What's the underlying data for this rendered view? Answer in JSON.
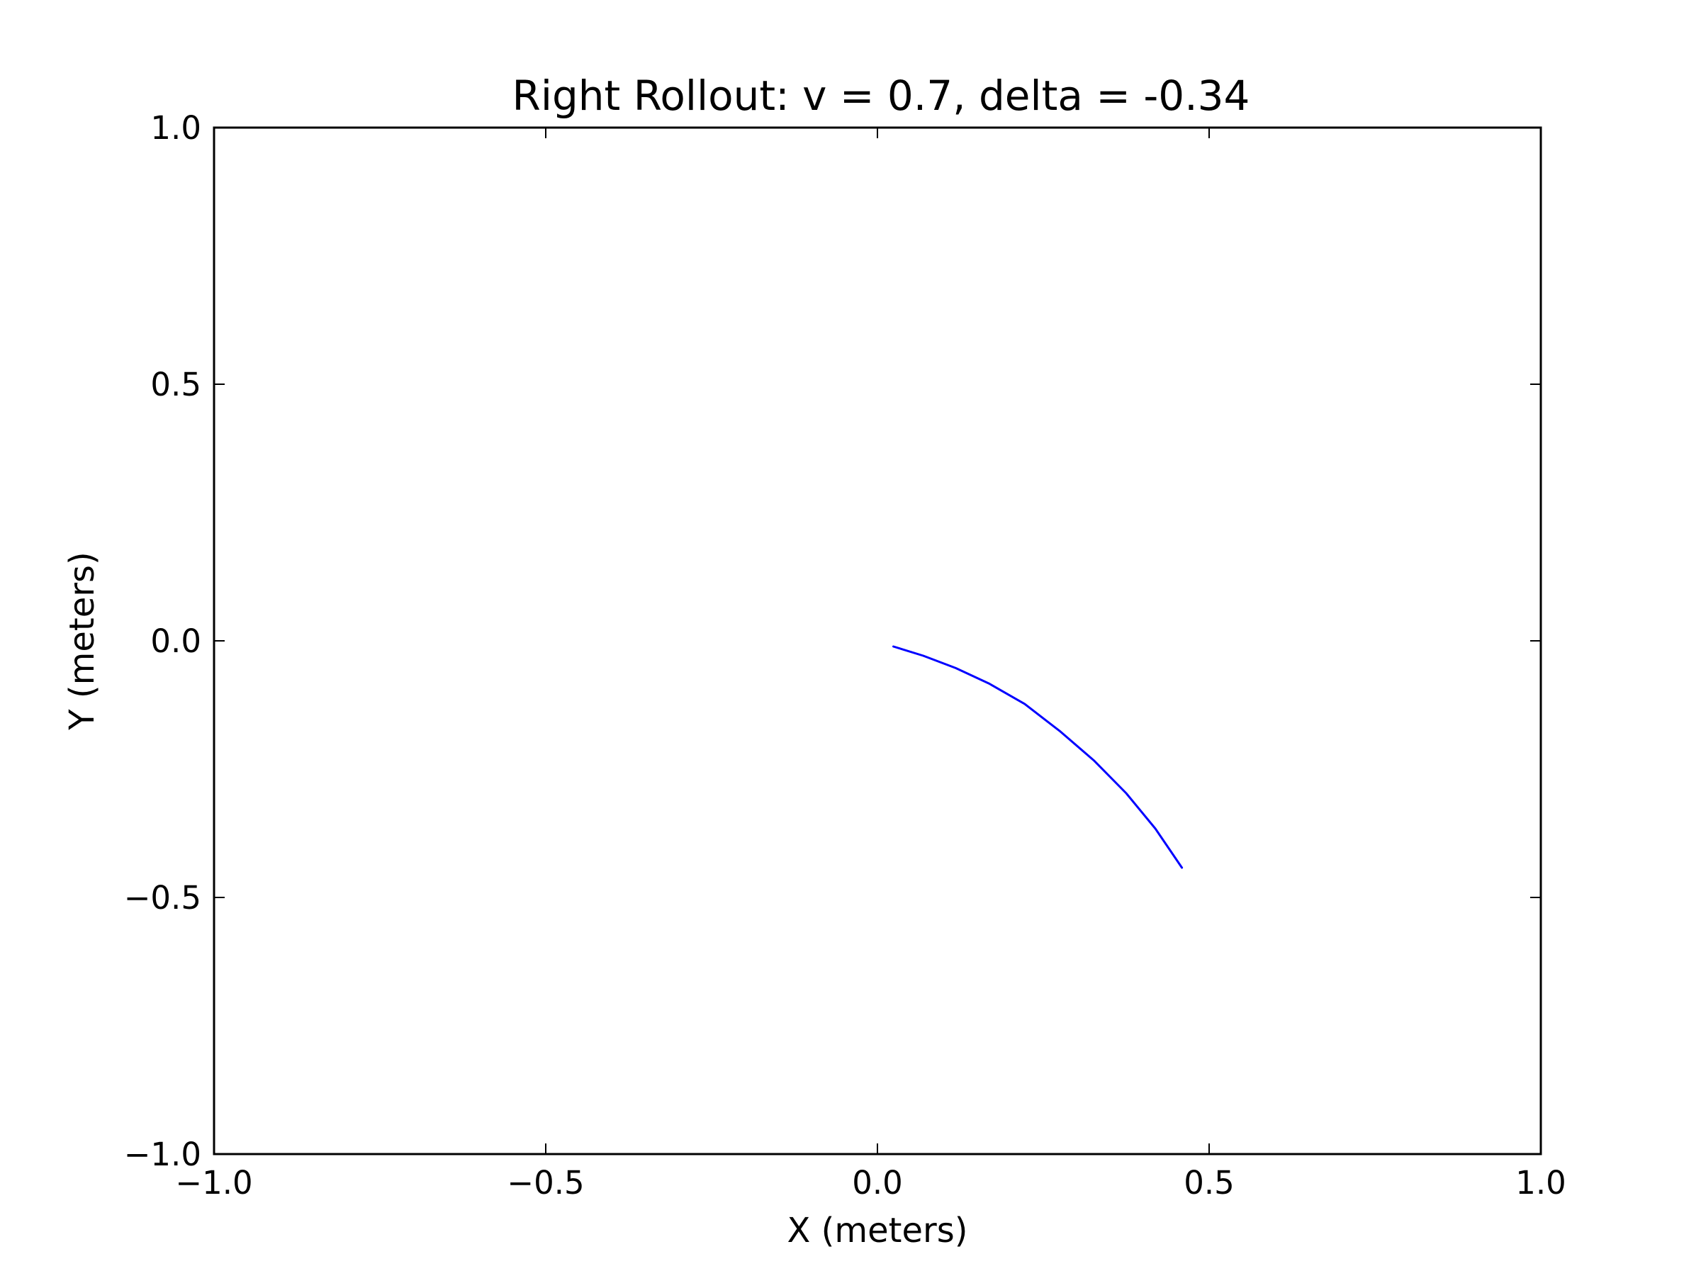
{
  "chart_data": {
    "type": "line",
    "title": "Right Rollout: v = 0.7, delta = -0.34",
    "xlabel": "X (meters)",
    "ylabel": "Y (meters)",
    "xlim": [
      -1.0,
      1.0
    ],
    "ylim": [
      -1.0,
      1.0
    ],
    "xticks": [
      -1.0,
      -0.5,
      0.0,
      0.5,
      1.0
    ],
    "yticks": [
      -1.0,
      -0.5,
      0.0,
      0.5,
      1.0
    ],
    "xtick_labels": [
      "−1.0",
      "−0.5",
      "0.0",
      "0.5",
      "1.0"
    ],
    "ytick_labels": [
      "−1.0",
      "−0.5",
      "0.0",
      "0.5",
      "1.0"
    ],
    "grid": false,
    "series": [
      {
        "color": "#0000ff",
        "x": [
          0.024,
          0.069,
          0.118,
          0.168,
          0.222,
          0.276,
          0.327,
          0.375,
          0.419,
          0.459
        ],
        "y": [
          -0.011,
          -0.029,
          -0.053,
          -0.083,
          -0.123,
          -0.177,
          -0.234,
          -0.297,
          -0.366,
          -0.442
        ]
      }
    ]
  }
}
